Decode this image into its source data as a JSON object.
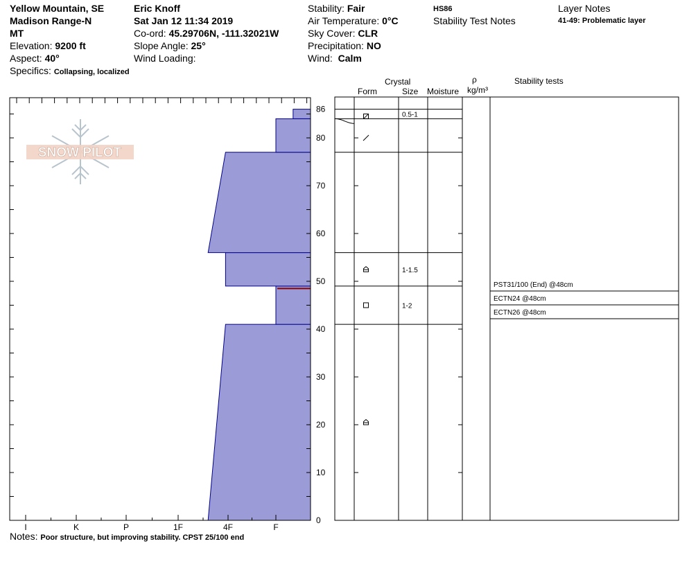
{
  "header": {
    "location_line1": "Yellow Mountain, SE",
    "location_line2": "Madison Range-N",
    "location_line3": "MT",
    "elevation_label": "Elevation:",
    "elevation_value": "9200 ft",
    "aspect_label": "Aspect:",
    "aspect_value": "40°",
    "specifics_label": "Specifics:",
    "specifics_value": "Collapsing, localized",
    "observer": "Eric Knoff",
    "date": "Sat Jan 12 11:34 2019",
    "coord_label": "Co-ord:",
    "coord_value": "45.29706N, -111.32021W",
    "slope_label": "Slope Angle:",
    "slope_value": "25°",
    "wind_loading_label": "Wind Loading:",
    "wind_loading_value": "",
    "stability_label": "Stability:",
    "stability_value": "Fair",
    "air_temp_label": "Air Temperature:",
    "air_temp_value": "0°C",
    "sky_label": "Sky Cover:",
    "sky_value": "CLR",
    "precip_label": "Precipitation:",
    "precip_value": "NO",
    "wind_label": "Wind:",
    "wind_value": "Calm",
    "hs": "HS86",
    "stability_test_notes_title": "Stability Test Notes",
    "layer_notes_title": "Layer Notes",
    "layer_note": "41-49: Problematic layer"
  },
  "logo_text": "SNOW PILOT",
  "notes_label": "Notes:",
  "notes_value": "Poor structure, but improving stability. CPST 25/100 end",
  "table_headers": {
    "crystal": "Crystal",
    "form": "Form",
    "size": "Size",
    "moisture": "Moisture",
    "rho": "ρ",
    "density_unit": "kg/m³",
    "stability_tests": "Stability tests"
  },
  "colors": {
    "hardness_fill": "#9b9bd7",
    "hardness_stroke": "#00008b",
    "weak_layer_line": "#8b0000"
  },
  "chart_data": {
    "type": "area",
    "xlabel": "",
    "ylabel": "",
    "hardness_ticks": [
      "I",
      "K",
      "P",
      "1F",
      "4F",
      "F"
    ],
    "ylim": [
      0,
      86
    ],
    "y_ticks": [
      0,
      10,
      20,
      30,
      40,
      50,
      60,
      70,
      80,
      86
    ],
    "hardness_scale_note": "hardness index: I=0, K=1, P=2, 1F=3, 4F=4, F=5, F+=5.7",
    "layers": [
      {
        "bottom": 0,
        "top": 41,
        "hardness_bottom": 3.6,
        "hardness_top": 3.95
      },
      {
        "bottom": 41,
        "top": 49,
        "hardness_bottom": 5.0,
        "hardness_top": 5.0
      },
      {
        "bottom": 49,
        "top": 56,
        "hardness_bottom": 3.95,
        "hardness_top": 3.95
      },
      {
        "bottom": 56,
        "top": 77,
        "hardness_bottom": 3.6,
        "hardness_top": 3.95
      },
      {
        "bottom": 77,
        "top": 84,
        "hardness_bottom": 5.0,
        "hardness_top": 5.0
      },
      {
        "bottom": 84,
        "top": 86,
        "hardness_bottom": 5.35,
        "hardness_top": 5.35
      }
    ],
    "weak_layer_height": 48.5,
    "temperature_profile_heights": [
      84,
      83
    ],
    "layer_boundaries": [
      86,
      84,
      77,
      56,
      49,
      41,
      0
    ],
    "grain_symbols": [
      {
        "height": 84.5,
        "symbol": "rounding-facet"
      },
      {
        "height": 80,
        "symbol": "decomposing"
      },
      {
        "height": 52.5,
        "symbol": "depth-hoar"
      },
      {
        "height": 45,
        "symbol": "facet"
      },
      {
        "height": 20.5,
        "symbol": "depth-hoar"
      }
    ],
    "grain_sizes": [
      {
        "height": 85,
        "label": "0.5-1"
      },
      {
        "height": 52.5,
        "label": "1-1.5"
      },
      {
        "height": 45,
        "label": "1-2"
      }
    ],
    "stability_tests": [
      {
        "label": "PST31/100 (End) @48cm"
      },
      {
        "label": "ECTN24 @48cm"
      },
      {
        "label": "ECTN26 @48cm"
      }
    ]
  }
}
